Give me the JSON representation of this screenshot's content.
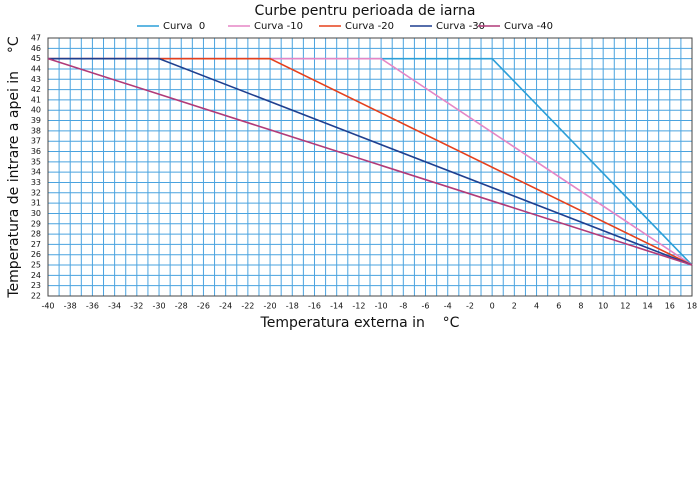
{
  "chart_data": {
    "type": "line",
    "title": "Curbe pentru perioada de iarna",
    "xlabel": "Temperatura externa in    °C",
    "ylabel": "Temperatura de intrare a apei in    °C",
    "series": [
      {
        "name": "Curva  0",
        "color": "#2b9fd8",
        "x": [
          -40,
          0,
          18
        ],
        "values": [
          45,
          45,
          25
        ]
      },
      {
        "name": "Curva -10",
        "color": "#e586c6",
        "x": [
          -40,
          -10,
          18
        ],
        "values": [
          45,
          45,
          25
        ]
      },
      {
        "name": "Curva -20",
        "color": "#e5401c",
        "x": [
          -40,
          -20,
          18
        ],
        "values": [
          45,
          45,
          25
        ]
      },
      {
        "name": "Curva -30",
        "color": "#1f3f8f",
        "x": [
          -40,
          -30,
          18
        ],
        "values": [
          45,
          45,
          25
        ]
      },
      {
        "name": "Curva -40",
        "color": "#b13a78",
        "x": [
          -40,
          18
        ],
        "values": [
          45,
          25
        ]
      }
    ],
    "xlim": [
      -40,
      18
    ],
    "ylim": [
      22,
      47
    ],
    "xticks": [
      -40,
      -38,
      -36,
      -34,
      -32,
      -30,
      -28,
      -26,
      -24,
      -22,
      -20,
      -18,
      -16,
      -14,
      -12,
      -10,
      -8,
      -6,
      -4,
      -2,
      0,
      2,
      4,
      6,
      8,
      10,
      12,
      14,
      16,
      18
    ],
    "xminorticks": [
      -39,
      -37,
      -35,
      -33,
      -31,
      -29,
      -27,
      -25,
      -23,
      -21,
      -19,
      -17,
      -15,
      -13,
      -11,
      -9,
      -7,
      -5,
      -3,
      -1,
      1,
      3,
      5,
      7,
      9,
      11,
      13,
      15,
      17
    ],
    "yticks": [
      22,
      23,
      24,
      25,
      26,
      27,
      28,
      29,
      30,
      31,
      32,
      33,
      34,
      35,
      36,
      37,
      38,
      39,
      40,
      41,
      42,
      43,
      44,
      45,
      46,
      47
    ],
    "grid": true,
    "grid_color": "#4aa3df",
    "legend": "top"
  }
}
